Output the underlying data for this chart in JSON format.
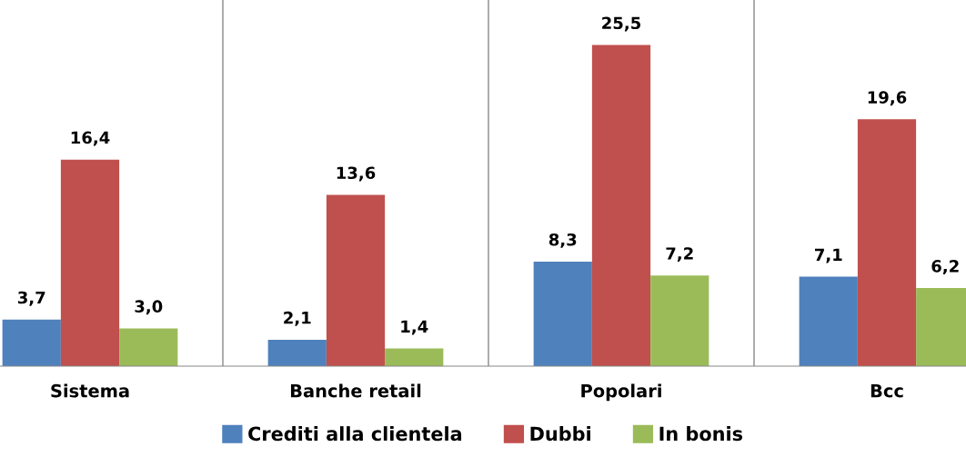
{
  "chart_data": {
    "type": "bar",
    "categories": [
      "Sistema",
      "Banche retail",
      "Popolari",
      "Bcc"
    ],
    "series": [
      {
        "name": "Crediti alla clientela",
        "color": "#4f81bd",
        "values": [
          3.7,
          2.1,
          8.3,
          7.1
        ],
        "value_labels": [
          "3,7",
          "2,1",
          "8,3",
          "7,1"
        ]
      },
      {
        "name": "Dubbi",
        "color": "#c0504d",
        "values": [
          16.4,
          13.6,
          25.5,
          19.6
        ],
        "value_labels": [
          "16,4",
          "13,6",
          "25,5",
          "19,6"
        ]
      },
      {
        "name": "In bonis",
        "color": "#9bbb59",
        "values": [
          3.0,
          1.4,
          7.2,
          6.2
        ],
        "value_labels": [
          "3,0",
          "1,4",
          "7,2",
          "6,2"
        ]
      }
    ],
    "legend": "bottom"
  }
}
